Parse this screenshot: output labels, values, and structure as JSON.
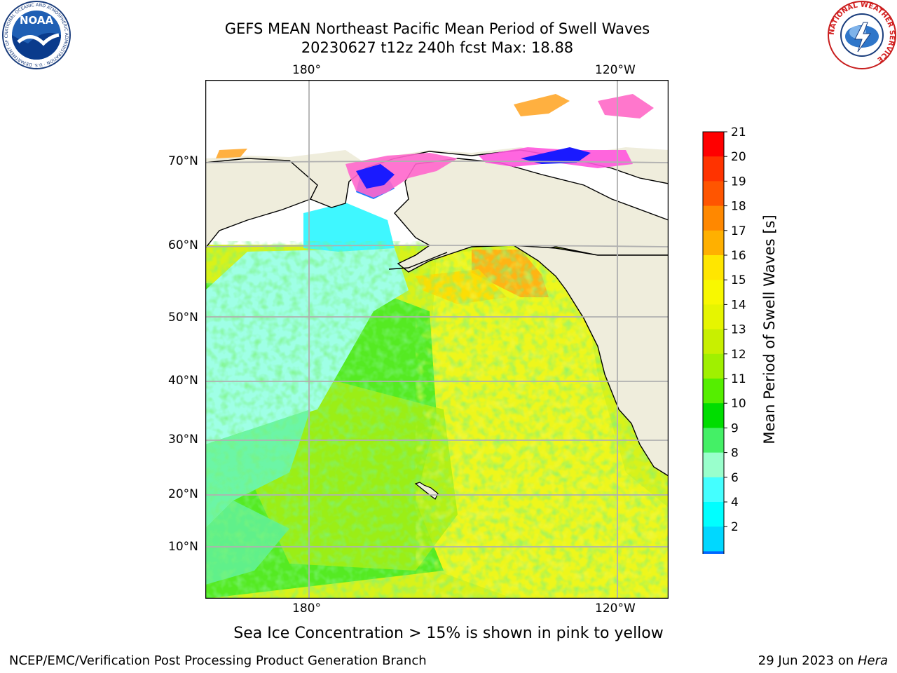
{
  "title": {
    "line1": "GEFS MEAN Northeast Pacific Mean Period of Swell Waves",
    "line2": "20230627 t12z 240h fcst   Max: 18.88"
  },
  "map": {
    "lon_labels_top": [
      "180°",
      "120°W"
    ],
    "lon_labels_bottom": [
      "180°",
      "120°W"
    ],
    "lat_labels": [
      "70°N",
      "60°N",
      "50°N",
      "40°N",
      "30°N",
      "20°N",
      "10°N"
    ],
    "land_color": "#efeddc",
    "grid_color": "#b0b0b0",
    "note": "Sea Ice Concentration > 15% is shown in pink to yellow"
  },
  "colorbar": {
    "label": "Mean Period of Swell Waves [s]",
    "ticks": [
      "21",
      "20",
      "19",
      "18",
      "17",
      "16",
      "15",
      "14",
      "13",
      "12",
      "11",
      "10",
      "9",
      "8",
      "6",
      "4",
      "2"
    ],
    "extend": "min",
    "colors_top_to_bottom": [
      "#ff0000",
      "#ff3300",
      "#ff5500",
      "#ff8800",
      "#ffb000",
      "#ffe600",
      "#f8f800",
      "#e6f500",
      "#c8f000",
      "#a0f000",
      "#55ee00",
      "#00dd00",
      "#44f066",
      "#99ffcc",
      "#44ffff",
      "#00ffff",
      "#00d8ff",
      "#0066ff"
    ],
    "underflow_color": "#0022ee"
  },
  "footer": {
    "left": "NCEP/EMC/Verification Post Processing Product Generation Branch",
    "date": "29 Jun 2023 on ",
    "machine": "Hera"
  },
  "logos": {
    "noaa": "NOAA",
    "noaa_ring": "NATIONAL OCEANIC AND ATMOSPHERIC ADMINISTRATION · U.S. DEPARTMENT OF COMMERCE",
    "nws_ring": "NATIONAL WEATHER SERVICE"
  }
}
